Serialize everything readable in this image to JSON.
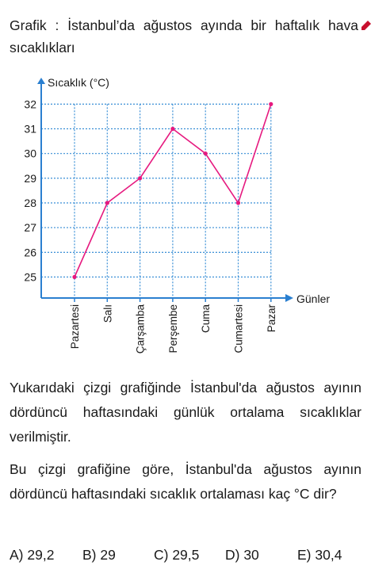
{
  "question_title": "Grafik : İstanbul’da ağustos ayında bir haftalık hava sıcaklıkları",
  "chart_data": {
    "type": "line",
    "ylabel": "Sıcaklık (°C)",
    "xlabel": "Günler",
    "categories": [
      "Pazartesi",
      "Salı",
      "Çarşamba",
      "Perşembe",
      "Cuma",
      "Cumartesi",
      "Pazar"
    ],
    "values": [
      25,
      28,
      29,
      31,
      30,
      28,
      32
    ],
    "yticks": [
      25,
      26,
      27,
      28,
      29,
      30,
      31,
      32
    ],
    "ylim": [
      24.15,
      32.3
    ],
    "grid": true,
    "line_color": "#e6197f",
    "grid_color": "#3a8fd6"
  },
  "paragraph1": "Yukarıdaki çizgi grafiğinde İstanbul'da ağustos ayının dördüncü haftasındaki günlük ortalama sıcaklıklar verilmiştir.",
  "paragraph2": "Bu çizgi grafiğine göre, İstanbul'da ağustos ayının dördüncü haftasındaki sıcaklık ortalaması kaç °C dir?",
  "options": [
    "A) 29,2",
    "B) 29",
    "C) 29,5",
    "D) 30",
    "E) 30,4"
  ]
}
